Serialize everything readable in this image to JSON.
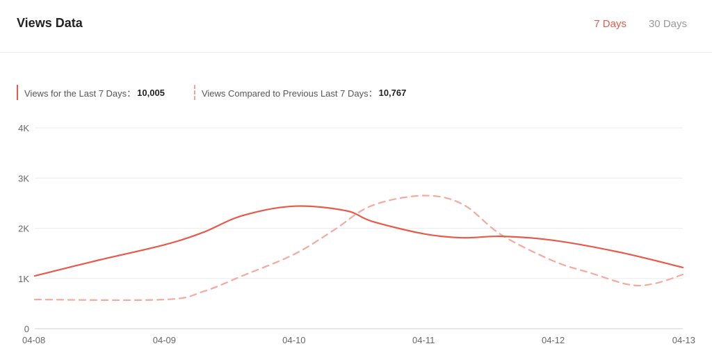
{
  "header": {
    "title": "Views Data",
    "tabs": [
      {
        "label": "7 Days",
        "active": true
      },
      {
        "label": "30 Days",
        "active": false
      }
    ]
  },
  "legend": {
    "current_label": "Views for the Last 7 Days：",
    "current_value": "10,005",
    "previous_label": "Views Compared to Previous Last 7 Days：",
    "previous_value": "10,767"
  },
  "colors": {
    "accent": "#e8594a",
    "previous_series": "#f4a99f",
    "grid": "#ececec"
  },
  "chart_data": {
    "type": "line",
    "x": [
      "04-08",
      "04-09",
      "04-10",
      "04-11",
      "04-12",
      "04-13"
    ],
    "y_ticks": [
      "0",
      "1K",
      "2K",
      "3K",
      "4K"
    ],
    "ylim": [
      0,
      4000
    ],
    "grid": true,
    "series": [
      {
        "name": "Views for the Last 7 Days",
        "style": "solid",
        "curve": [
          [
            0,
            1050
          ],
          [
            0.5,
            1370
          ],
          [
            1,
            1670
          ],
          [
            1.3,
            1920
          ],
          [
            1.6,
            2250
          ],
          [
            2,
            2440
          ],
          [
            2.4,
            2350
          ],
          [
            2.6,
            2140
          ],
          [
            3,
            1890
          ],
          [
            3.3,
            1810
          ],
          [
            3.6,
            1840
          ],
          [
            4,
            1760
          ],
          [
            4.5,
            1530
          ],
          [
            5,
            1220
          ]
        ]
      },
      {
        "name": "Views Compared to Previous Last 7 Days",
        "style": "dashed",
        "curve": [
          [
            0,
            580
          ],
          [
            1,
            580
          ],
          [
            1.3,
            740
          ],
          [
            1.6,
            1050
          ],
          [
            2,
            1480
          ],
          [
            2.3,
            1950
          ],
          [
            2.6,
            2450
          ],
          [
            3,
            2650
          ],
          [
            3.3,
            2480
          ],
          [
            3.6,
            1870
          ],
          [
            4,
            1350
          ],
          [
            4.3,
            1100
          ],
          [
            4.6,
            870
          ],
          [
            4.8,
            910
          ],
          [
            5,
            1080
          ]
        ]
      }
    ]
  }
}
